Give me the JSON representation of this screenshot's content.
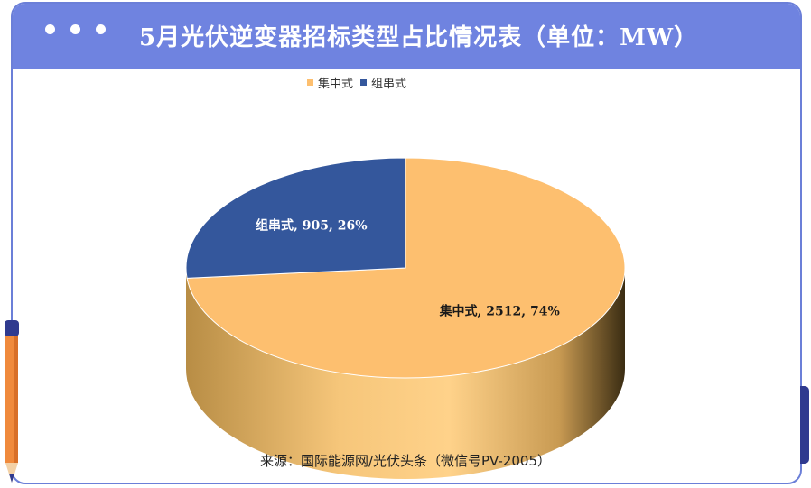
{
  "header": {
    "title": "5月光伏逆变器招标类型占比情况表（单位：MW）"
  },
  "legend": [
    {
      "label": "集中式",
      "color": "#fdbf6f"
    },
    {
      "label": "组串式",
      "color": "#34579c"
    }
  ],
  "chart_data": {
    "type": "pie",
    "title": "5月光伏逆变器招标类型占比情况表（单位：MW）",
    "unit": "MW",
    "legend_position": "top",
    "slices": [
      {
        "label": "集中式",
        "value": 2512,
        "percent": 74,
        "color": "#fdbf6f",
        "data_label": "集中式, 2512, 74%"
      },
      {
        "label": "组串式",
        "value": 905,
        "percent": 26,
        "color": "#34579c",
        "data_label": "组串式, 905, 26%"
      }
    ]
  },
  "footer": {
    "source": "来源：国际能源网/光伏头条（微信号PV-2005）"
  }
}
